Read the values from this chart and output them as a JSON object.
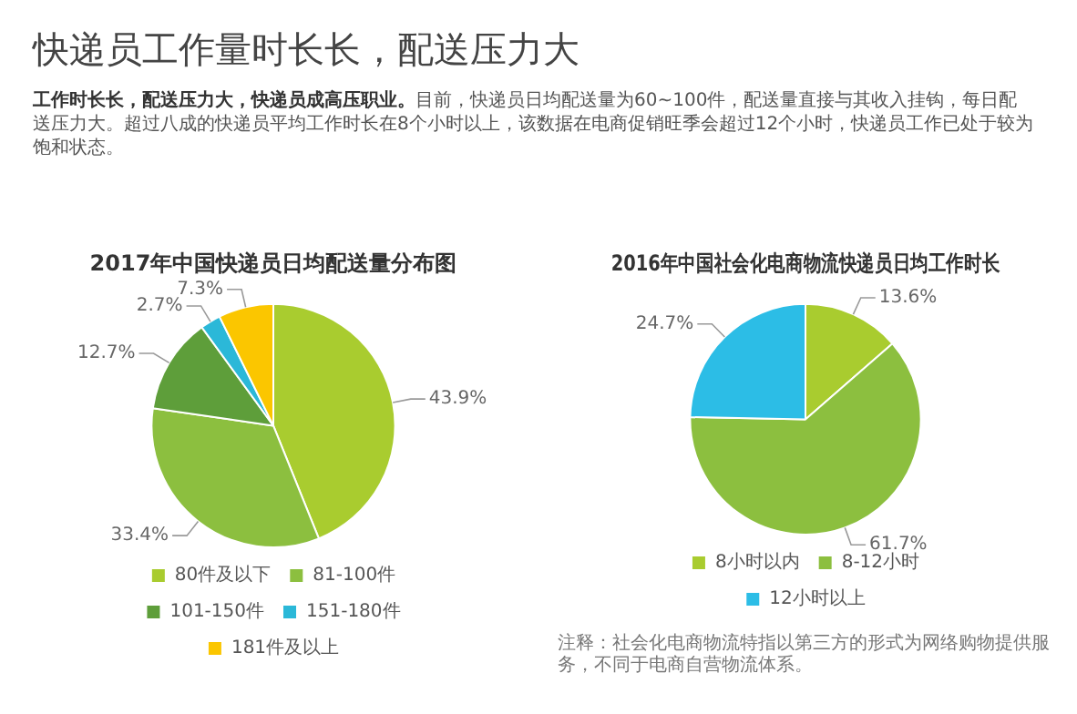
{
  "chart_data": [
    {
      "type": "other",
      "title": "快递员工作量时长长，配送压力大",
      "annotations": [
        "工作时长长，配送压力大，快递员成高压职业。",
        "目前，快递员日均配送量为60~100件，配送量直接与其收入挂钩，每日配送压力大。超过八成的快递员平均工作时长在8个小时以上，该数据在电商促销旺季会超过12个小时，快递员工作已处于较为饱和状态。"
      ]
    },
    {
      "type": "pie",
      "title": "2017年中国快递员日均配送量分布图",
      "categories": [
        "80件及以下",
        "81-100件",
        "101-150件",
        "151-180件",
        "181件及以上"
      ],
      "values": [
        43.9,
        33.4,
        12.7,
        2.7,
        7.3
      ],
      "colors": [
        "#a9cc2f",
        "#8cbf3f",
        "#5e9e3a",
        "#2bb8d8",
        "#fbc600"
      ],
      "value_labels": [
        "43.9%",
        "33.4%",
        "12.7%",
        "2.7%",
        "7.3%"
      ],
      "legend": "bottom"
    },
    {
      "type": "pie",
      "title": "2016年中国社会化电商物流快递员日均工作时长",
      "categories": [
        "8小时以内",
        "8-12小时",
        "12小时以上"
      ],
      "values": [
        13.6,
        61.7,
        24.7
      ],
      "colors": [
        "#a9cc2f",
        "#8cbf3f",
        "#2cbde6"
      ],
      "value_labels": [
        "13.6%",
        "61.7%",
        "24.7%"
      ],
      "legend": "bottom",
      "annotations": [
        "注释：社会化电商物流特指以第三方的形式为网络购物提供服务，不同于电商自营物流体系。"
      ]
    }
  ]
}
